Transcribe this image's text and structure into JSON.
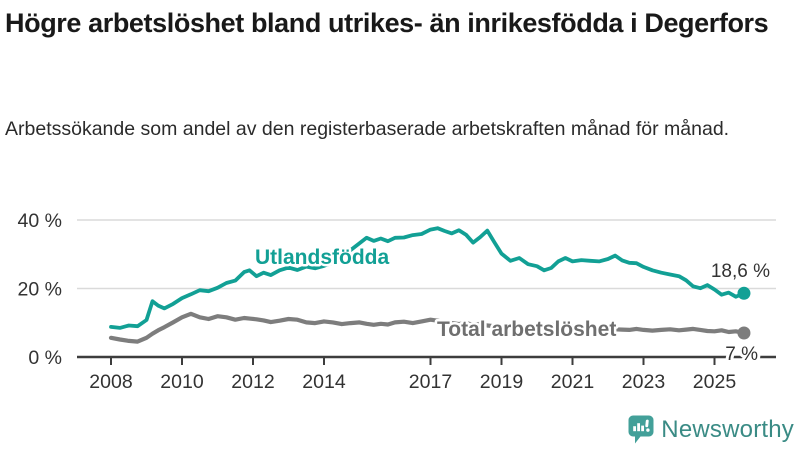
{
  "header": {
    "title": "Högre arbetslöshet bland utrikes- än inrikesfödda i Degerfors",
    "subtitle": "Arbetssökande som andel av den registerbaserade arbetskraften månad för månad."
  },
  "chart_data": {
    "type": "line",
    "title": "Högre arbetslöshet bland utrikes- än inrikesfödda i Degerfors",
    "subtitle": "Arbetssökande som andel av den registerbaserade arbetskraften månad för månad.",
    "xlabel": "",
    "ylabel": "",
    "xlim": [
      2008,
      2026.2
    ],
    "ylim": [
      0,
      45
    ],
    "grid": "horizontal",
    "legend_position": "inline-labels",
    "x_ticks": [
      {
        "year": 2008,
        "label": "2008"
      },
      {
        "year": 2010,
        "label": "2010"
      },
      {
        "year": 2012,
        "label": "2012"
      },
      {
        "year": 2014,
        "label": "2014"
      },
      {
        "year": 2017,
        "label": "2017"
      },
      {
        "year": 2019,
        "label": "2019"
      },
      {
        "year": 2021,
        "label": "2021"
      },
      {
        "year": 2023,
        "label": "2023"
      },
      {
        "year": 2025,
        "label": "2025"
      }
    ],
    "y_ticks": [
      {
        "value": 0,
        "label": "0 %"
      },
      {
        "value": 20,
        "label": "20 %"
      },
      {
        "value": 40,
        "label": "40 %"
      }
    ],
    "x": [
      2008.0,
      2008.25,
      2008.5,
      2008.75,
      2009.0,
      2009.17,
      2009.33,
      2009.5,
      2009.75,
      2010.0,
      2010.25,
      2010.5,
      2010.75,
      2011.0,
      2011.25,
      2011.5,
      2011.75,
      2011.9,
      2012.1,
      2012.3,
      2012.5,
      2012.75,
      2013.0,
      2013.25,
      2013.5,
      2013.75,
      2014.0,
      2014.25,
      2014.5,
      2014.75,
      2015.0,
      2015.2,
      2015.4,
      2015.6,
      2015.8,
      2016.0,
      2016.25,
      2016.5,
      2016.75,
      2017.0,
      2017.2,
      2017.4,
      2017.6,
      2017.8,
      2018.0,
      2018.2,
      2018.4,
      2018.6,
      2018.8,
      2019.0,
      2019.25,
      2019.5,
      2019.75,
      2020.0,
      2020.2,
      2020.4,
      2020.6,
      2020.8,
      2021.0,
      2021.25,
      2021.5,
      2021.75,
      2022.0,
      2022.2,
      2022.4,
      2022.6,
      2022.8,
      2023.0,
      2023.25,
      2023.5,
      2023.75,
      2024.0,
      2024.2,
      2024.4,
      2024.6,
      2024.8,
      2025.0,
      2025.2,
      2025.4,
      2025.6,
      2025.83
    ],
    "series": [
      {
        "id": "utlandsfodda",
        "name": "Utlandsfödda",
        "color": "#12A095",
        "line_width": 3.8,
        "end_label": "18,6 %",
        "values": [
          8.8,
          8.5,
          9.2,
          9.0,
          10.8,
          16.3,
          15.0,
          14.2,
          15.5,
          17.2,
          18.3,
          19.5,
          19.2,
          20.2,
          21.6,
          22.3,
          24.8,
          25.3,
          23.6,
          24.6,
          23.9,
          25.3,
          26.1,
          25.4,
          26.4,
          25.9,
          26.6,
          27.6,
          29.2,
          31.2,
          33.2,
          34.8,
          33.9,
          34.6,
          33.8,
          34.8,
          34.9,
          35.6,
          35.9,
          37.2,
          37.6,
          36.8,
          36.1,
          37.0,
          35.7,
          33.4,
          35.0,
          36.9,
          33.5,
          30.2,
          28.1,
          28.9,
          27.1,
          26.5,
          25.3,
          26.0,
          27.9,
          28.9,
          27.9,
          28.3,
          28.1,
          27.9,
          28.6,
          29.6,
          28.2,
          27.5,
          27.4,
          26.3,
          25.3,
          24.6,
          24.1,
          23.6,
          22.4,
          20.6,
          20.1,
          21.0,
          19.7,
          18.2,
          18.8,
          17.6,
          18.6
        ]
      },
      {
        "id": "total-arbetsloshet",
        "name": "Total arbetslöshet",
        "color": "#7D7D7D",
        "line_width": 4.2,
        "end_label": "7 %",
        "values": [
          5.6,
          5.1,
          4.7,
          4.5,
          5.6,
          6.8,
          7.8,
          8.7,
          10.1,
          11.6,
          12.6,
          11.6,
          11.1,
          11.9,
          11.6,
          10.9,
          11.4,
          11.2,
          11.0,
          10.7,
          10.2,
          10.6,
          11.1,
          10.9,
          10.1,
          9.9,
          10.4,
          10.1,
          9.6,
          9.9,
          10.1,
          9.7,
          9.4,
          9.7,
          9.5,
          10.1,
          10.3,
          9.9,
          10.4,
          10.9,
          10.6,
          10.2,
          9.9,
          9.6,
          9.9,
          9.4,
          9.7,
          9.2,
          9.0,
          8.9,
          8.6,
          8.9,
          8.5,
          8.7,
          9.1,
          9.4,
          9.1,
          8.9,
          8.9,
          8.7,
          8.4,
          8.1,
          8.3,
          8.1,
          8.0,
          7.9,
          8.2,
          7.9,
          7.7,
          7.9,
          8.1,
          7.8,
          8.0,
          8.2,
          7.9,
          7.6,
          7.5,
          7.8,
          7.3,
          7.5,
          7.0
        ]
      }
    ],
    "colors": {
      "grid": "#DADADA",
      "axis": "#3D3D3D",
      "tick_text": "#333333"
    }
  },
  "footer": {
    "brand": "Newsworthy",
    "logo_icon": "bar-chart-speech-bubble-icon",
    "brand_color": "#3A8B85",
    "icon_color": "#43A099"
  }
}
